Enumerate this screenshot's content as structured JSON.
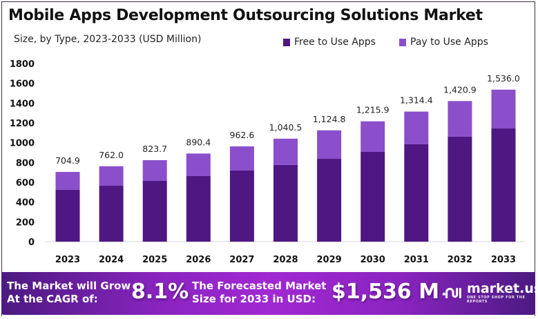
{
  "header": {
    "title": "Mobile Apps Development Outsourcing Solutions Market",
    "subtitle": "Size, by Type, 2023-2033 (USD Million)"
  },
  "legend": [
    {
      "label": "Free to Use Apps",
      "color": "#4e1782"
    },
    {
      "label": "Pay to Use Apps",
      "color": "#8b4fcb"
    }
  ],
  "chart_data": {
    "type": "bar",
    "stacked": true,
    "title": "Mobile Apps Development Outsourcing Solutions Market",
    "subtitle": "Size, by Type, 2023-2033 (USD Million)",
    "xlabel": "",
    "ylabel": "",
    "ylim": [
      0,
      1800
    ],
    "yticks": [
      "0",
      "200",
      "400",
      "600",
      "800",
      "1000",
      "1200",
      "1400",
      "1600",
      "1800"
    ],
    "ytick_values": [
      0,
      200,
      400,
      600,
      800,
      1000,
      1200,
      1400,
      1600,
      1800
    ],
    "grid": false,
    "legend_position": "top-right",
    "categories": [
      "2023",
      "2024",
      "2025",
      "2026",
      "2027",
      "2028",
      "2029",
      "2030",
      "2031",
      "2032",
      "2033"
    ],
    "series": [
      {
        "name": "Free to Use Apps",
        "color": "#4e1782",
        "values": [
          523,
          565,
          614,
          663,
          719,
          775,
          837,
          907,
          984,
          1061,
          1144
        ]
      },
      {
        "name": "Pay to Use Apps",
        "color": "#8b4fcb",
        "values": [
          181.9,
          197.0,
          209.7,
          227.4,
          243.6,
          265.5,
          287.8,
          308.9,
          330.4,
          359.9,
          392.0
        ]
      }
    ],
    "totals": [
      704.9,
      762.0,
      823.7,
      890.4,
      962.6,
      1040.5,
      1124.8,
      1215.9,
      1314.4,
      1420.9,
      1536.0
    ],
    "total_labels": [
      "704.9",
      "762.0",
      "823.7",
      "890.4",
      "962.6",
      "1,040.5",
      "1,124.8",
      "1,215.9",
      "1,314.4",
      "1,420.9",
      "1,536.0"
    ]
  },
  "banner": {
    "cagr_label_line1": "The Market will Grow",
    "cagr_label_line2": "At the CAGR of:",
    "cagr_value": "8.1%",
    "forecast_label_line1": "The Forecasted Market",
    "forecast_label_line2": "Size for 2033 in USD:",
    "forecast_value": "$1,536 M",
    "brand_name": "market.us",
    "brand_tagline": "ONE STOP SHOP FOR THE REPORTS"
  }
}
